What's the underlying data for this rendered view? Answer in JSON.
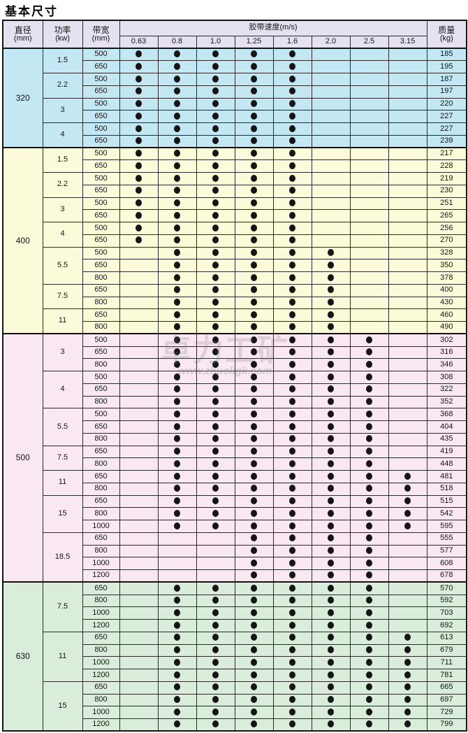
{
  "page": {
    "title": "基本尺寸"
  },
  "watermark": {
    "logo": "卓力工矿",
    "url": "www.zhuoligk.com"
  },
  "colors": {
    "header_bg": "#e6e1f0",
    "border": "#141414",
    "dot": "#151515",
    "section_320": "#c4e7f4",
    "section_400": "#fcfbd9",
    "section_500": "#f9e8f2",
    "section_630": "#d9edda"
  },
  "table": {
    "header": {
      "diameter_label": "直径",
      "diameter_unit": "(mm)",
      "power_label": "功率",
      "power_unit": "(kw)",
      "width_label": "带宽",
      "width_unit": "(mm)",
      "speed_label": "胶带速度(m/s)",
      "speeds": [
        "0.63",
        "0.8",
        "1.0",
        "1.25",
        "1.6",
        "2.0",
        "2.5",
        "3.15"
      ],
      "mass_label": "质量",
      "mass_unit": "(kg)"
    },
    "sections": [
      {
        "diameter": "320",
        "color": "#c4e7f4",
        "groups": [
          {
            "power": "1.5",
            "rows": [
              {
                "width": "500",
                "dots": [
                  1,
                  1,
                  1,
                  1,
                  1,
                  0,
                  0,
                  0
                ],
                "mass": "185"
              },
              {
                "width": "650",
                "dots": [
                  1,
                  1,
                  1,
                  1,
                  1,
                  0,
                  0,
                  0
                ],
                "mass": "195"
              }
            ]
          },
          {
            "power": "2.2",
            "rows": [
              {
                "width": "500",
                "dots": [
                  1,
                  1,
                  1,
                  1,
                  1,
                  0,
                  0,
                  0
                ],
                "mass": "187"
              },
              {
                "width": "650",
                "dots": [
                  1,
                  1,
                  1,
                  1,
                  1,
                  0,
                  0,
                  0
                ],
                "mass": "197"
              }
            ]
          },
          {
            "power": "3",
            "rows": [
              {
                "width": "500",
                "dots": [
                  1,
                  1,
                  1,
                  1,
                  1,
                  0,
                  0,
                  0
                ],
                "mass": "220"
              },
              {
                "width": "650",
                "dots": [
                  1,
                  1,
                  1,
                  1,
                  1,
                  0,
                  0,
                  0
                ],
                "mass": "227"
              }
            ]
          },
          {
            "power": "4",
            "rows": [
              {
                "width": "500",
                "dots": [
                  1,
                  1,
                  1,
                  1,
                  1,
                  0,
                  0,
                  0
                ],
                "mass": "227"
              },
              {
                "width": "650",
                "dots": [
                  1,
                  1,
                  1,
                  1,
                  1,
                  0,
                  0,
                  0
                ],
                "mass": "239"
              }
            ]
          }
        ]
      },
      {
        "diameter": "400",
        "color": "#fcfbd9",
        "groups": [
          {
            "power": "1.5",
            "rows": [
              {
                "width": "500",
                "dots": [
                  1,
                  1,
                  1,
                  1,
                  1,
                  0,
                  0,
                  0
                ],
                "mass": "217"
              },
              {
                "width": "650",
                "dots": [
                  1,
                  1,
                  1,
                  1,
                  1,
                  0,
                  0,
                  0
                ],
                "mass": "228"
              }
            ]
          },
          {
            "power": "2.2",
            "rows": [
              {
                "width": "500",
                "dots": [
                  1,
                  1,
                  1,
                  1,
                  1,
                  0,
                  0,
                  0
                ],
                "mass": "219"
              },
              {
                "width": "650",
                "dots": [
                  1,
                  1,
                  1,
                  1,
                  1,
                  0,
                  0,
                  0
                ],
                "mass": "230"
              }
            ]
          },
          {
            "power": "3",
            "rows": [
              {
                "width": "500",
                "dots": [
                  1,
                  1,
                  1,
                  1,
                  1,
                  0,
                  0,
                  0
                ],
                "mass": "251"
              },
              {
                "width": "650",
                "dots": [
                  1,
                  1,
                  1,
                  1,
                  1,
                  0,
                  0,
                  0
                ],
                "mass": "265"
              }
            ]
          },
          {
            "power": "4",
            "rows": [
              {
                "width": "500",
                "dots": [
                  1,
                  1,
                  1,
                  1,
                  1,
                  0,
                  0,
                  0
                ],
                "mass": "256"
              },
              {
                "width": "650",
                "dots": [
                  1,
                  1,
                  1,
                  1,
                  1,
                  0,
                  0,
                  0
                ],
                "mass": "270"
              }
            ]
          },
          {
            "power": "5.5",
            "rows": [
              {
                "width": "500",
                "dots": [
                  0,
                  1,
                  1,
                  1,
                  1,
                  1,
                  0,
                  0
                ],
                "mass": "328"
              },
              {
                "width": "650",
                "dots": [
                  0,
                  1,
                  1,
                  1,
                  1,
                  1,
                  0,
                  0
                ],
                "mass": "350"
              },
              {
                "width": "800",
                "dots": [
                  0,
                  1,
                  1,
                  1,
                  1,
                  1,
                  0,
                  0
                ],
                "mass": "378"
              }
            ]
          },
          {
            "power": "7.5",
            "rows": [
              {
                "width": "650",
                "dots": [
                  0,
                  1,
                  1,
                  1,
                  1,
                  1,
                  0,
                  0
                ],
                "mass": "400"
              },
              {
                "width": "800",
                "dots": [
                  0,
                  1,
                  1,
                  1,
                  1,
                  1,
                  0,
                  0
                ],
                "mass": "430"
              }
            ]
          },
          {
            "power": "11",
            "rows": [
              {
                "width": "650",
                "dots": [
                  0,
                  1,
                  1,
                  1,
                  1,
                  1,
                  0,
                  0
                ],
                "mass": "460"
              },
              {
                "width": "800",
                "dots": [
                  0,
                  1,
                  1,
                  1,
                  1,
                  1,
                  0,
                  0
                ],
                "mass": "490"
              }
            ]
          }
        ]
      },
      {
        "diameter": "500",
        "color": "#f9e8f2",
        "groups": [
          {
            "power": "3",
            "rows": [
              {
                "width": "500",
                "dots": [
                  0,
                  1,
                  1,
                  1,
                  1,
                  1,
                  1,
                  0
                ],
                "mass": "302"
              },
              {
                "width": "650",
                "dots": [
                  0,
                  1,
                  1,
                  1,
                  1,
                  1,
                  1,
                  0
                ],
                "mass": "316"
              },
              {
                "width": "800",
                "dots": [
                  0,
                  1,
                  1,
                  1,
                  1,
                  1,
                  1,
                  0
                ],
                "mass": "346"
              }
            ]
          },
          {
            "power": "4",
            "rows": [
              {
                "width": "500",
                "dots": [
                  0,
                  1,
                  1,
                  1,
                  1,
                  1,
                  1,
                  0
                ],
                "mass": "308"
              },
              {
                "width": "650",
                "dots": [
                  0,
                  1,
                  1,
                  1,
                  1,
                  1,
                  1,
                  0
                ],
                "mass": "322"
              },
              {
                "width": "800",
                "dots": [
                  0,
                  1,
                  1,
                  1,
                  1,
                  1,
                  1,
                  0
                ],
                "mass": "352"
              }
            ]
          },
          {
            "power": "5.5",
            "rows": [
              {
                "width": "500",
                "dots": [
                  0,
                  1,
                  1,
                  1,
                  1,
                  1,
                  1,
                  0
                ],
                "mass": "368"
              },
              {
                "width": "650",
                "dots": [
                  0,
                  1,
                  1,
                  1,
                  1,
                  1,
                  1,
                  0
                ],
                "mass": "404"
              },
              {
                "width": "800",
                "dots": [
                  0,
                  1,
                  1,
                  1,
                  1,
                  1,
                  1,
                  0
                ],
                "mass": "435"
              }
            ]
          },
          {
            "power": "7.5",
            "rows": [
              {
                "width": "650",
                "dots": [
                  0,
                  1,
                  1,
                  1,
                  1,
                  1,
                  1,
                  0
                ],
                "mass": "419"
              },
              {
                "width": "800",
                "dots": [
                  0,
                  1,
                  1,
                  1,
                  1,
                  1,
                  1,
                  0
                ],
                "mass": "448"
              }
            ]
          },
          {
            "power": "11",
            "rows": [
              {
                "width": "650",
                "dots": [
                  0,
                  1,
                  1,
                  1,
                  1,
                  1,
                  1,
                  1
                ],
                "mass": "481"
              },
              {
                "width": "800",
                "dots": [
                  0,
                  1,
                  1,
                  1,
                  1,
                  1,
                  1,
                  1
                ],
                "mass": "518"
              }
            ]
          },
          {
            "power": "15",
            "rows": [
              {
                "width": "650",
                "dots": [
                  0,
                  1,
                  1,
                  1,
                  1,
                  1,
                  1,
                  1
                ],
                "mass": "515"
              },
              {
                "width": "800",
                "dots": [
                  0,
                  1,
                  1,
                  1,
                  1,
                  1,
                  1,
                  1
                ],
                "mass": "542"
              },
              {
                "width": "1000",
                "dots": [
                  0,
                  1,
                  1,
                  1,
                  1,
                  1,
                  1,
                  1
                ],
                "mass": "595"
              }
            ]
          },
          {
            "power": "18.5",
            "rows": [
              {
                "width": "650",
                "dots": [
                  0,
                  0,
                  0,
                  1,
                  1,
                  1,
                  1,
                  0
                ],
                "mass": "555"
              },
              {
                "width": "800",
                "dots": [
                  0,
                  0,
                  0,
                  1,
                  1,
                  1,
                  1,
                  0
                ],
                "mass": "577"
              },
              {
                "width": "1000",
                "dots": [
                  0,
                  0,
                  0,
                  1,
                  1,
                  1,
                  1,
                  0
                ],
                "mass": "608"
              },
              {
                "width": "1200",
                "dots": [
                  0,
                  0,
                  0,
                  1,
                  1,
                  1,
                  1,
                  0
                ],
                "mass": "678"
              }
            ]
          }
        ]
      },
      {
        "diameter": "630",
        "color": "#d9edda",
        "groups": [
          {
            "power": "7.5",
            "rows": [
              {
                "width": "650",
                "dots": [
                  0,
                  1,
                  1,
                  1,
                  1,
                  1,
                  1,
                  0
                ],
                "mass": "570"
              },
              {
                "width": "800",
                "dots": [
                  0,
                  1,
                  1,
                  1,
                  1,
                  1,
                  1,
                  0
                ],
                "mass": "592"
              },
              {
                "width": "1000",
                "dots": [
                  0,
                  1,
                  1,
                  1,
                  1,
                  1,
                  1,
                  0
                ],
                "mass": "703"
              },
              {
                "width": "1200",
                "dots": [
                  0,
                  1,
                  1,
                  1,
                  1,
                  1,
                  1,
                  0
                ],
                "mass": "692"
              }
            ]
          },
          {
            "power": "11",
            "rows": [
              {
                "width": "650",
                "dots": [
                  0,
                  1,
                  1,
                  1,
                  1,
                  1,
                  1,
                  1
                ],
                "mass": "613"
              },
              {
                "width": "800",
                "dots": [
                  0,
                  1,
                  1,
                  1,
                  1,
                  1,
                  1,
                  1
                ],
                "mass": "679"
              },
              {
                "width": "1000",
                "dots": [
                  0,
                  1,
                  1,
                  1,
                  1,
                  1,
                  1,
                  1
                ],
                "mass": "711"
              },
              {
                "width": "1200",
                "dots": [
                  0,
                  1,
                  1,
                  1,
                  1,
                  1,
                  1,
                  1
                ],
                "mass": "781"
              }
            ]
          },
          {
            "power": "15",
            "rows": [
              {
                "width": "650",
                "dots": [
                  0,
                  1,
                  1,
                  1,
                  1,
                  1,
                  1,
                  1
                ],
                "mass": "665"
              },
              {
                "width": "800",
                "dots": [
                  0,
                  1,
                  1,
                  1,
                  1,
                  1,
                  1,
                  1
                ],
                "mass": "697"
              },
              {
                "width": "1000",
                "dots": [
                  0,
                  1,
                  1,
                  1,
                  1,
                  1,
                  1,
                  1
                ],
                "mass": "729"
              },
              {
                "width": "1200",
                "dots": [
                  0,
                  1,
                  1,
                  1,
                  1,
                  1,
                  1,
                  1
                ],
                "mass": "799"
              }
            ]
          }
        ]
      }
    ]
  }
}
